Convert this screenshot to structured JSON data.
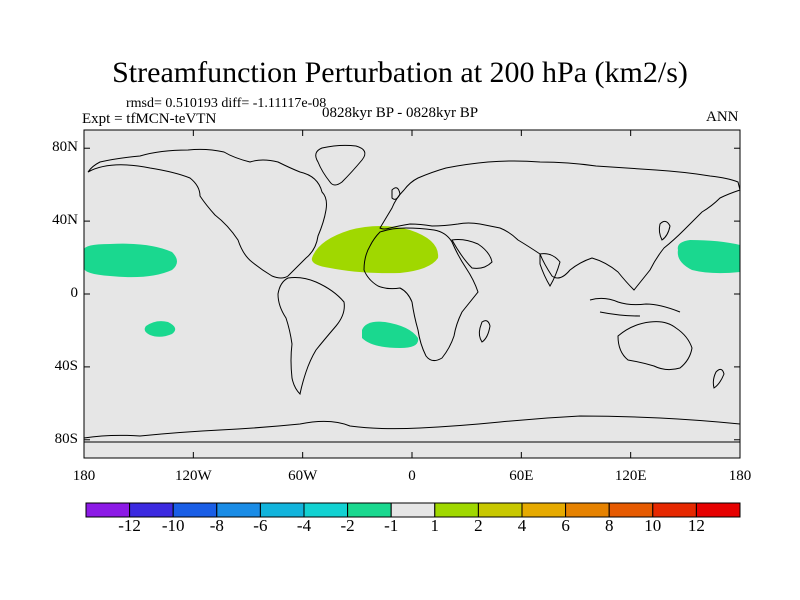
{
  "header": {
    "title": "Streamfunction Perturbation at 200 hPa (km2/s)",
    "stats": "rmsd= 0.510193 diff= -1.11117e-08",
    "experiment": "Expt = tfMCN-teVTN",
    "period": "0828kyr BP - 0828kyr BP",
    "season": "ANN"
  },
  "map": {
    "lat_labels": [
      "80N",
      "40N",
      "0",
      "40S",
      "80S"
    ],
    "lon_labels": [
      "180",
      "120W",
      "60W",
      "0",
      "60E",
      "120E",
      "180"
    ],
    "background_color": "#e6e6e6",
    "anomalies": [
      {
        "name": "north-pacific-negative",
        "level": "-2",
        "lon": -160,
        "lat": 20,
        "color": "#1ad88f"
      },
      {
        "name": "central-pacific-negative",
        "level": "-2",
        "lon": -140,
        "lat": -19,
        "color": "#1ad88f"
      },
      {
        "name": "north-atlantic-africa-positive",
        "level": "2",
        "lon": -18,
        "lat": 26,
        "color": "#a0d800"
      },
      {
        "name": "south-atlantic-negative",
        "level": "-2",
        "lon": -10,
        "lat": -22,
        "color": "#1ad88f"
      },
      {
        "name": "west-pacific-negative",
        "level": "-2",
        "lon": 158,
        "lat": 22,
        "color": "#1ad88f"
      }
    ]
  },
  "colorbar": {
    "labels": [
      "-12",
      "-10",
      "-8",
      "-6",
      "-4",
      "-2",
      "-1",
      "1",
      "2",
      "4",
      "6",
      "8",
      "10",
      "12"
    ],
    "colors": [
      "#8c1ae6",
      "#3c2ae0",
      "#1a5ee6",
      "#1a8ce6",
      "#12b4dc",
      "#12d2d2",
      "#1ad88f",
      "#e6e6e6",
      "#a0d800",
      "#c8c800",
      "#e6aa00",
      "#e68200",
      "#e65a00",
      "#e62800",
      "#e60000"
    ]
  }
}
